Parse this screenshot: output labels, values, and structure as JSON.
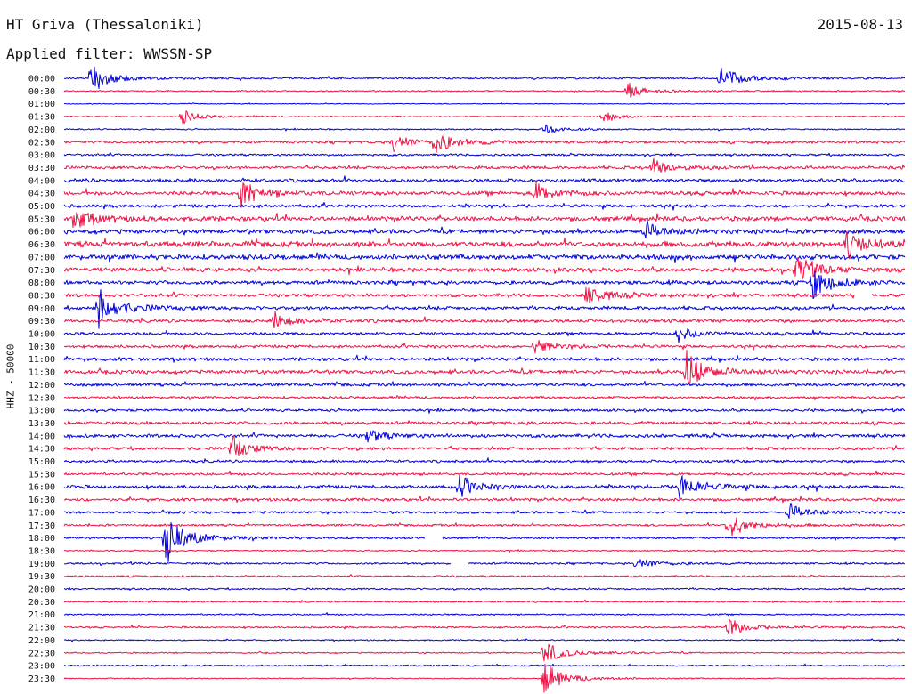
{
  "header": {
    "station": "HT Griva (Thessaloniki)",
    "date": "2015-08-13",
    "filter": "Applied filter: WWSSN-SP"
  },
  "axis": {
    "ylabel": "HHZ - 50000"
  },
  "colors": {
    "trace_a": "#0000dd",
    "trace_b": "#ee1144"
  },
  "chart_data": {
    "type": "line",
    "title": "HT Griva (Thessaloniki)",
    "date": "2015-08-13",
    "filter": "WWSSN-SP",
    "channel": "HHZ - 50000",
    "row_labels": [
      "00:00",
      "00:30",
      "01:00",
      "01:30",
      "02:00",
      "02:30",
      "03:00",
      "03:30",
      "04:00",
      "04:30",
      "05:00",
      "05:30",
      "06:00",
      "06:30",
      "07:00",
      "07:30",
      "08:00",
      "08:30",
      "09:00",
      "09:30",
      "10:00",
      "10:30",
      "11:00",
      "11:30",
      "12:00",
      "12:30",
      "13:00",
      "13:30",
      "14:00",
      "14:30",
      "15:00",
      "15:30",
      "16:00",
      "16:30",
      "17:00",
      "17:30",
      "18:00",
      "18:30",
      "19:00",
      "19:30",
      "20:00",
      "20:30",
      "21:00",
      "21:30",
      "22:00",
      "22:30",
      "23:00",
      "23:30"
    ],
    "noise_levels": [
      0.8,
      0.6,
      0.4,
      0.5,
      0.6,
      1.2,
      1.0,
      1.4,
      1.6,
      1.8,
      1.5,
      2.2,
      2.0,
      2.6,
      2.4,
      2.0,
      1.8,
      1.6,
      1.6,
      1.5,
      1.3,
      1.3,
      1.6,
      1.7,
      1.4,
      1.1,
      1.2,
      1.5,
      1.6,
      1.4,
      1.2,
      1.2,
      1.6,
      1.4,
      1.1,
      1.0,
      1.0,
      0.6,
      0.9,
      0.8,
      0.8,
      0.7,
      0.7,
      0.8,
      0.6,
      0.6,
      0.7,
      0.5
    ],
    "events": [
      {
        "row": 0,
        "pos": 0.03,
        "amp": 18
      },
      {
        "row": 0,
        "pos": 0.78,
        "amp": 14
      },
      {
        "row": 1,
        "pos": 0.67,
        "amp": 8
      },
      {
        "row": 3,
        "pos": 0.14,
        "amp": 7
      },
      {
        "row": 3,
        "pos": 0.64,
        "amp": 5
      },
      {
        "row": 4,
        "pos": 0.57,
        "amp": 5
      },
      {
        "row": 5,
        "pos": 0.39,
        "amp": 10
      },
      {
        "row": 5,
        "pos": 0.44,
        "amp": 12
      },
      {
        "row": 7,
        "pos": 0.7,
        "amp": 8
      },
      {
        "row": 9,
        "pos": 0.21,
        "amp": 14
      },
      {
        "row": 9,
        "pos": 0.56,
        "amp": 10
      },
      {
        "row": 11,
        "pos": 0.01,
        "amp": 12
      },
      {
        "row": 12,
        "pos": 0.69,
        "amp": 10
      },
      {
        "row": 13,
        "pos": 0.93,
        "amp": 14
      },
      {
        "row": 15,
        "pos": 0.87,
        "amp": 16
      },
      {
        "row": 16,
        "pos": 0.89,
        "amp": 16
      },
      {
        "row": 17,
        "pos": 0.62,
        "amp": 12
      },
      {
        "row": 18,
        "pos": 0.04,
        "amp": 20
      },
      {
        "row": 19,
        "pos": 0.25,
        "amp": 8
      },
      {
        "row": 20,
        "pos": 0.73,
        "amp": 8
      },
      {
        "row": 21,
        "pos": 0.56,
        "amp": 7
      },
      {
        "row": 23,
        "pos": 0.74,
        "amp": 22
      },
      {
        "row": 28,
        "pos": 0.36,
        "amp": 7
      },
      {
        "row": 29,
        "pos": 0.2,
        "amp": 12
      },
      {
        "row": 32,
        "pos": 0.47,
        "amp": 10
      },
      {
        "row": 32,
        "pos": 0.73,
        "amp": 14
      },
      {
        "row": 34,
        "pos": 0.86,
        "amp": 10
      },
      {
        "row": 35,
        "pos": 0.79,
        "amp": 14
      },
      {
        "row": 36,
        "pos": 0.12,
        "amp": 28
      },
      {
        "row": 38,
        "pos": 0.68,
        "amp": 7
      },
      {
        "row": 43,
        "pos": 0.79,
        "amp": 10
      },
      {
        "row": 45,
        "pos": 0.57,
        "amp": 14
      },
      {
        "row": 47,
        "pos": 0.57,
        "amp": 18
      }
    ],
    "gaps": [
      {
        "row": 36,
        "pos": 0.43,
        "width": 0.02
      },
      {
        "row": 38,
        "pos": 0.46,
        "width": 0.02
      },
      {
        "row": 17,
        "pos": 0.94,
        "width": 0.02
      }
    ],
    "grid": false,
    "legend": "none"
  }
}
